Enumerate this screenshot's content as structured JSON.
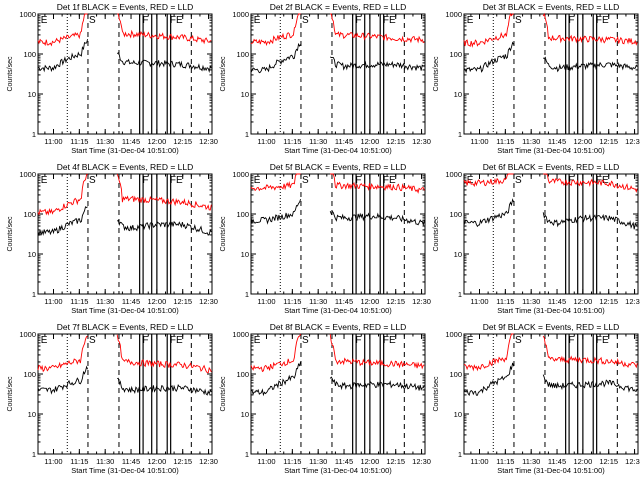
{
  "chart_data": [
    {
      "type": "line",
      "title": "Det 1f BLACK = Events, RED = LLD",
      "xlabel": "Start Time (31-Dec-04 10:51:00)",
      "ylabel": "Counts/sec",
      "ylim": [
        1,
        1000
      ],
      "yscale": "log",
      "x_ticks": [
        "11:00",
        "11:15",
        "11:30",
        "11:45",
        "12:00",
        "12:15",
        "12:30"
      ],
      "y_ticks": [
        "1",
        "10",
        "100",
        "1000"
      ],
      "markers": [
        "E",
        "S",
        "F",
        "FE"
      ],
      "series": [
        {
          "name": "BLACK",
          "color": "#000000",
          "x": [
            "11:00",
            "11:15",
            "11:45",
            "12:00",
            "12:15",
            "12:30"
          ],
          "values": [
            45,
            100,
            60,
            60,
            55,
            45
          ]
        },
        {
          "name": "RED",
          "color": "#ff0000",
          "x": [
            "11:00",
            "11:15",
            "11:45",
            "12:00",
            "12:15",
            "12:30"
          ],
          "values": [
            200,
            300,
            320,
            290,
            260,
            210
          ]
        }
      ]
    },
    {
      "type": "line",
      "title": "Det 2f BLACK = Events, RED = LLD",
      "xlabel": "Start Time (31-Dec-04 10:51:00)",
      "ylabel": "Counts/sec",
      "ylim": [
        1,
        1000
      ],
      "yscale": "log",
      "x_ticks": [
        "11:00",
        "11:15",
        "11:30",
        "11:45",
        "12:00",
        "12:15",
        "12:30"
      ],
      "y_ticks": [
        "1",
        "10",
        "100",
        "1000"
      ],
      "markers": [
        "E",
        "S",
        "F",
        "FE"
      ],
      "series": [
        {
          "name": "BLACK",
          "color": "#000000",
          "x": [
            "11:00",
            "11:15",
            "11:45",
            "12:00",
            "12:15",
            "12:30"
          ],
          "values": [
            40,
            90,
            50,
            55,
            55,
            45
          ]
        },
        {
          "name": "RED",
          "color": "#ff0000",
          "x": [
            "11:00",
            "11:15",
            "11:45",
            "12:00",
            "12:15",
            "12:30"
          ],
          "values": [
            200,
            320,
            300,
            280,
            250,
            230
          ]
        }
      ]
    },
    {
      "type": "line",
      "title": "Det 3f BLACK = Events, RED = LLD",
      "xlabel": "Start Time (31-Dec-04 10:51:00)",
      "ylabel": "Counts/sec",
      "ylim": [
        1,
        1000
      ],
      "yscale": "log",
      "x_ticks": [
        "11:00",
        "11:15",
        "11:30",
        "11:45",
        "12:00",
        "12:15",
        "12:30"
      ],
      "y_ticks": [
        "1",
        "10",
        "100",
        "1000"
      ],
      "markers": [
        "E",
        "S",
        "F",
        "FE"
      ],
      "series": [
        {
          "name": "BLACK",
          "color": "#000000",
          "x": [
            "11:00",
            "11:15",
            "11:45",
            "12:00",
            "12:15",
            "12:30"
          ],
          "values": [
            40,
            90,
            45,
            50,
            55,
            45
          ]
        },
        {
          "name": "RED",
          "color": "#ff0000",
          "x": [
            "11:00",
            "11:15",
            "11:45",
            "12:00",
            "12:15",
            "12:30"
          ],
          "values": [
            190,
            300,
            250,
            240,
            230,
            210
          ]
        }
      ]
    },
    {
      "type": "line",
      "title": "Det 4f BLACK = Events, RED = LLD",
      "xlabel": "Start Time (31-Dec-04 10:51:00)",
      "ylabel": "Counts/sec",
      "ylim": [
        1,
        1000
      ],
      "yscale": "log",
      "x_ticks": [
        "11:00",
        "11:15",
        "11:30",
        "11:45",
        "12:00",
        "12:15",
        "12:30"
      ],
      "y_ticks": [
        "1",
        "10",
        "100",
        "1000"
      ],
      "markers": [
        "E",
        "S",
        "F",
        "FE"
      ],
      "series": [
        {
          "name": "BLACK",
          "color": "#000000",
          "x": [
            "11:00",
            "11:15",
            "11:45",
            "12:00",
            "12:15",
            "12:30"
          ],
          "values": [
            35,
            70,
            45,
            55,
            55,
            35
          ]
        },
        {
          "name": "RED",
          "color": "#ff0000",
          "x": [
            "11:00",
            "11:15",
            "11:45",
            "12:00",
            "12:15",
            "12:30"
          ],
          "values": [
            110,
            230,
            240,
            220,
            200,
            150
          ]
        }
      ]
    },
    {
      "type": "line",
      "title": "Det 5f BLACK = Events, RED = LLD",
      "xlabel": "Start Time (31-Dec-04 10:51:00)",
      "ylabel": "Counts/sec",
      "ylim": [
        1,
        1000
      ],
      "yscale": "log",
      "x_ticks": [
        "11:00",
        "11:15",
        "11:30",
        "11:45",
        "12:00",
        "12:15",
        "12:30"
      ],
      "y_ticks": [
        "1",
        "10",
        "100",
        "1000"
      ],
      "markers": [
        "E",
        "S",
        "F",
        "FE"
      ],
      "series": [
        {
          "name": "BLACK",
          "color": "#000000",
          "x": [
            "11:00",
            "11:15",
            "11:45",
            "12:00",
            "12:15",
            "12:30"
          ],
          "values": [
            70,
            100,
            80,
            90,
            80,
            60
          ]
        },
        {
          "name": "RED",
          "color": "#ff0000",
          "x": [
            "11:00",
            "11:15",
            "11:45",
            "12:00",
            "12:15",
            "12:30"
          ],
          "values": [
            450,
            520,
            520,
            500,
            480,
            400
          ]
        }
      ]
    },
    {
      "type": "line",
      "title": "Det 6f BLACK = Events, RED = LLD",
      "xlabel": "Start Time (31-Dec-04 10:51:00)",
      "ylabel": "Counts/sec",
      "ylim": [
        1,
        1000
      ],
      "yscale": "log",
      "x_ticks": [
        "11:00",
        "11:15",
        "11:30",
        "11:45",
        "12:00",
        "12:15",
        "12:30"
      ],
      "y_ticks": [
        "1",
        "10",
        "100",
        "1000"
      ],
      "markers": [
        "E",
        "S",
        "F",
        "FE"
      ],
      "series": [
        {
          "name": "BLACK",
          "color": "#000000",
          "x": [
            "11:00",
            "11:15",
            "11:45",
            "12:00",
            "12:15",
            "12:30"
          ],
          "values": [
            60,
            100,
            60,
            80,
            80,
            50
          ]
        },
        {
          "name": "RED",
          "color": "#ff0000",
          "x": [
            "11:00",
            "11:15",
            "11:45",
            "12:00",
            "12:15",
            "12:30"
          ],
          "values": [
            600,
            700,
            650,
            620,
            600,
            420
          ]
        }
      ]
    },
    {
      "type": "line",
      "title": "Det 7f BLACK = Events, RED = LLD",
      "xlabel": "Start Time (31-Dec-04 10:51:00)",
      "ylabel": "Counts/sec",
      "ylim": [
        1,
        1000
      ],
      "yscale": "log",
      "x_ticks": [
        "11:00",
        "11:15",
        "11:30",
        "11:45",
        "12:00",
        "12:15",
        "12:30"
      ],
      "y_ticks": [
        "1",
        "10",
        "100",
        "1000"
      ],
      "markers": [
        "E",
        "S",
        "F",
        "FE"
      ],
      "series": [
        {
          "name": "BLACK",
          "color": "#000000",
          "x": [
            "11:00",
            "11:15",
            "11:45",
            "12:00",
            "12:15",
            "12:30"
          ],
          "values": [
            40,
            70,
            40,
            45,
            45,
            35
          ]
        },
        {
          "name": "RED",
          "color": "#ff0000",
          "x": [
            "11:00",
            "11:15",
            "11:45",
            "12:00",
            "12:15",
            "12:30"
          ],
          "values": [
            140,
            220,
            200,
            180,
            170,
            130
          ]
        }
      ]
    },
    {
      "type": "line",
      "title": "Det 8f BLACK = Events, RED = LLD",
      "xlabel": "Start Time (31-Dec-04 10:51:00)",
      "ylabel": "Counts/sec",
      "ylim": [
        1,
        1000
      ],
      "yscale": "log",
      "x_ticks": [
        "11:00",
        "11:15",
        "11:30",
        "11:45",
        "12:00",
        "12:15",
        "12:30"
      ],
      "y_ticks": [
        "1",
        "10",
        "100",
        "1000"
      ],
      "markers": [
        "E",
        "S",
        "F",
        "FE"
      ],
      "series": [
        {
          "name": "BLACK",
          "color": "#000000",
          "x": [
            "11:00",
            "11:15",
            "11:45",
            "12:00",
            "12:15",
            "12:30"
          ],
          "values": [
            35,
            80,
            50,
            55,
            55,
            45
          ]
        },
        {
          "name": "RED",
          "color": "#ff0000",
          "x": [
            "11:00",
            "11:15",
            "11:45",
            "12:00",
            "12:15",
            "12:30"
          ],
          "values": [
            140,
            220,
            210,
            190,
            180,
            160
          ]
        }
      ]
    },
    {
      "type": "line",
      "title": "Det 9f BLACK = Events, RED = LLD",
      "xlabel": "Start Time (31-Dec-04 10:51:00)",
      "ylabel": "Counts/sec",
      "ylim": [
        1,
        1000
      ],
      "yscale": "log",
      "x_ticks": [
        "11:00",
        "11:15",
        "11:30",
        "11:45",
        "12:00",
        "12:15",
        "12:30"
      ],
      "y_ticks": [
        "1",
        "10",
        "100",
        "1000"
      ],
      "markers": [
        "E",
        "S",
        "F",
        "FE"
      ],
      "series": [
        {
          "name": "BLACK",
          "color": "#000000",
          "x": [
            "11:00",
            "11:15",
            "11:45",
            "12:00",
            "12:15",
            "12:30"
          ],
          "values": [
            35,
            80,
            50,
            55,
            60,
            40
          ]
        },
        {
          "name": "RED",
          "color": "#ff0000",
          "x": [
            "11:00",
            "11:15",
            "11:45",
            "12:00",
            "12:15",
            "12:30"
          ],
          "values": [
            150,
            250,
            230,
            230,
            210,
            170
          ]
        }
      ]
    }
  ]
}
